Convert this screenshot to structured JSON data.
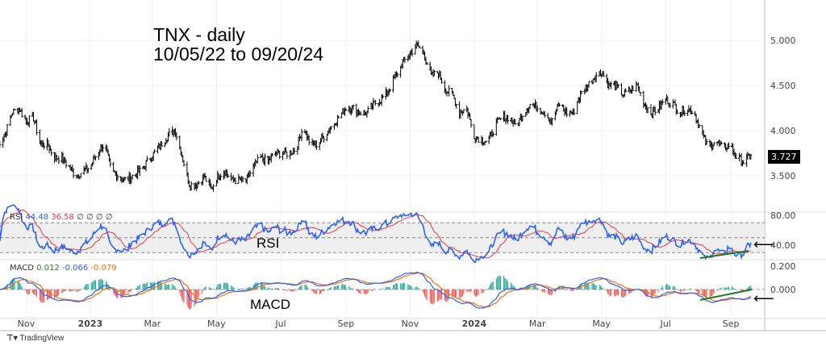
{
  "chart_data": {
    "type": "line",
    "title": "TNX - daily",
    "subtitle": "10/05/22 to 09/20/24",
    "start_date": "2022-10-05",
    "end_date": "2024-09-20",
    "weekly_close": [
      3.85,
      3.95,
      4.2,
      4.25,
      4.1,
      4.15,
      3.85,
      3.85,
      3.7,
      3.7,
      3.6,
      3.5,
      3.55,
      3.6,
      3.75,
      3.85,
      3.55,
      3.5,
      3.45,
      3.5,
      3.55,
      3.65,
      3.75,
      3.85,
      3.95,
      4.0,
      3.7,
      3.4,
      3.4,
      3.5,
      3.35,
      3.5,
      3.55,
      3.45,
      3.45,
      3.45,
      3.6,
      3.7,
      3.65,
      3.75,
      3.75,
      3.75,
      3.8,
      4.05,
      3.85,
      3.85,
      3.95,
      4.05,
      4.15,
      4.25,
      4.25,
      4.2,
      4.2,
      4.3,
      4.35,
      4.45,
      4.6,
      4.75,
      4.85,
      4.95,
      4.85,
      4.6,
      4.65,
      4.45,
      4.4,
      4.2,
      4.25,
      3.95,
      3.9,
      3.88,
      4.05,
      4.15,
      4.15,
      4.05,
      4.2,
      4.3,
      4.25,
      4.2,
      4.1,
      4.3,
      4.2,
      4.2,
      4.4,
      4.5,
      4.6,
      4.65,
      4.5,
      4.5,
      4.4,
      4.45,
      4.5,
      4.3,
      4.2,
      4.25,
      4.35,
      4.3,
      4.2,
      4.25,
      4.2,
      4.0,
      3.8,
      3.9,
      3.8,
      3.85,
      3.7,
      3.65,
      3.727
    ],
    "last_price": "3.727",
    "price_ticks": [
      "5.000",
      "4.500",
      "4.000",
      "3.500"
    ],
    "price_tick_values": [
      5.0,
      4.5,
      4.0,
      3.5
    ],
    "price_ylim": [
      3.2,
      5.2
    ],
    "x_labels": [
      "Nov",
      "2023",
      "Mar",
      "May",
      "Jul",
      "Sep",
      "Nov",
      "2024",
      "Mar",
      "May",
      "Jul",
      "Sep"
    ],
    "x_label_dates": [
      "2022-11-01",
      "2023-01-01",
      "2023-03-01",
      "2023-05-01",
      "2023-07-01",
      "2023-09-01",
      "2023-11-01",
      "2024-01-01",
      "2024-03-01",
      "2024-05-01",
      "2024-07-01",
      "2024-09-01"
    ],
    "rsi": {
      "legend": "RSI",
      "value": "44.48",
      "ma": "36.58",
      "extra": [
        "∅",
        "∅",
        "∅",
        "∅"
      ],
      "ticks": [
        "80.00",
        "40.00"
      ],
      "tick_values": [
        80,
        40
      ],
      "band": [
        30,
        70
      ],
      "label": "RSI"
    },
    "macd": {
      "legend": "MACD",
      "hist": "0.012",
      "macd": "-0.066",
      "signal": "-0.079",
      "ticks": [
        "0.200",
        "0.000"
      ],
      "tick_values": [
        0.2,
        0
      ],
      "label": "MACD"
    },
    "colors": {
      "price": "#000000",
      "rsi": "#2962ff",
      "rsi_ma": "#f23645",
      "macd": "#2962ff",
      "signal": "#ff6d00",
      "hist_up": "#26a69a",
      "hist_down": "#ef5350",
      "trend": "#1b7a1b"
    }
  },
  "branding": "TradingView"
}
